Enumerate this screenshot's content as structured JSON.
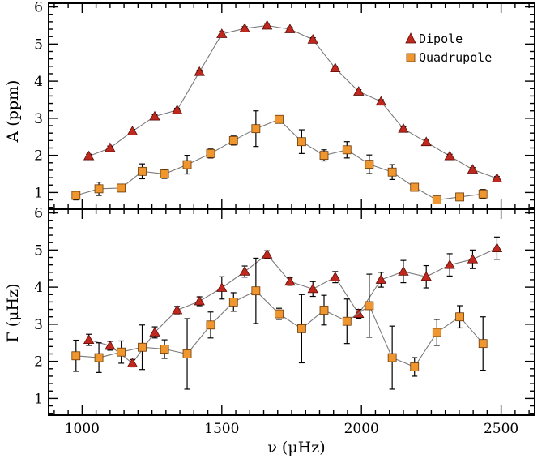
{
  "colors": {
    "dipole": "#c0281e",
    "quadrupole": "#f0962e",
    "line": "#7a7a7a"
  },
  "legend": {
    "dipole": "Dipole",
    "quadrupole": "Quadrupole",
    "position": "top-right"
  },
  "chart_data": [
    {
      "type": "scatter",
      "panel": "top",
      "ylabel": "A  (ppm)",
      "xlim": [
        880,
        2620
      ],
      "ylim": [
        0.55,
        6.1
      ],
      "yticks": [
        1,
        2,
        3,
        4,
        5,
        6
      ],
      "series": [
        {
          "name": "Dipole",
          "marker": "triangle",
          "x": [
            1024,
            1100,
            1180,
            1260,
            1340,
            1420,
            1500,
            1582,
            1662,
            1744,
            1826,
            1906,
            1990,
            2070,
            2150,
            2232,
            2316,
            2398,
            2485
          ],
          "y": [
            1.98,
            2.2,
            2.65,
            3.05,
            3.22,
            4.25,
            5.27,
            5.42,
            5.5,
            5.4,
            5.12,
            4.35,
            3.72,
            3.45,
            2.72,
            2.36,
            1.98,
            1.62,
            1.38
          ],
          "err": [
            0.05,
            0.05,
            0.05,
            0.05,
            0.05,
            0.05,
            0.07,
            0.05,
            0.05,
            0.05,
            0.05,
            0.05,
            0.05,
            0.05,
            0.05,
            0.05,
            0.05,
            0.05,
            0.05
          ]
        },
        {
          "name": "Quadrupole",
          "marker": "square",
          "x": [
            978,
            1060,
            1140,
            1215,
            1295,
            1376,
            1460,
            1542,
            1622,
            1705,
            1786,
            1866,
            1948,
            2028,
            2110,
            2190,
            2270,
            2352,
            2435
          ],
          "y": [
            0.92,
            1.1,
            1.12,
            1.57,
            1.5,
            1.75,
            2.05,
            2.4,
            2.72,
            2.97,
            2.37,
            2.0,
            2.15,
            1.76,
            1.55,
            1.14,
            0.8,
            0.88,
            0.96
          ],
          "err": [
            0.12,
            0.18,
            0.1,
            0.2,
            0.12,
            0.25,
            0.12,
            0.12,
            0.48,
            0.05,
            0.32,
            0.15,
            0.22,
            0.25,
            0.2,
            0.07,
            0.05,
            0.07,
            0.12
          ]
        }
      ]
    },
    {
      "type": "scatter",
      "panel": "bottom",
      "xlabel": "ν  (μHz)",
      "ylabel": "Γ  (μHz)",
      "xlim": [
        880,
        2620
      ],
      "xticks": [
        1000,
        1500,
        2000,
        2500
      ],
      "ylim": [
        0.55,
        6.1
      ],
      "yticks": [
        1,
        2,
        3,
        4,
        5,
        6
      ],
      "series": [
        {
          "name": "Dipole",
          "marker": "triangle",
          "x": [
            1024,
            1100,
            1180,
            1260,
            1340,
            1420,
            1500,
            1582,
            1662,
            1744,
            1826,
            1906,
            1990,
            2070,
            2150,
            2232,
            2316,
            2398,
            2485
          ],
          "y": [
            2.58,
            2.42,
            1.95,
            2.78,
            3.38,
            3.62,
            3.98,
            4.42,
            4.88,
            4.15,
            3.95,
            4.27,
            3.28,
            4.2,
            4.42,
            4.28,
            4.6,
            4.75,
            5.05
          ],
          "err": [
            0.15,
            0.12,
            0.1,
            0.15,
            0.1,
            0.12,
            0.3,
            0.15,
            0.1,
            0.1,
            0.2,
            0.15,
            0.12,
            0.2,
            0.3,
            0.3,
            0.3,
            0.25,
            0.3
          ]
        },
        {
          "name": "Quadrupole",
          "marker": "square",
          "x": [
            978,
            1060,
            1140,
            1215,
            1295,
            1376,
            1460,
            1542,
            1622,
            1705,
            1786,
            1866,
            1948,
            2028,
            2110,
            2190,
            2270,
            2352,
            2435
          ],
          "y": [
            2.15,
            2.1,
            2.25,
            2.38,
            2.33,
            2.2,
            2.98,
            3.6,
            3.9,
            3.28,
            2.88,
            3.38,
            3.08,
            3.5,
            2.1,
            1.85,
            2.78,
            3.2,
            2.48
          ],
          "err": [
            0.42,
            0.4,
            0.3,
            0.6,
            0.25,
            0.95,
            0.35,
            0.25,
            0.88,
            0.15,
            0.92,
            0.4,
            0.6,
            0.85,
            0.85,
            0.25,
            0.35,
            0.3,
            0.72
          ]
        }
      ]
    }
  ]
}
